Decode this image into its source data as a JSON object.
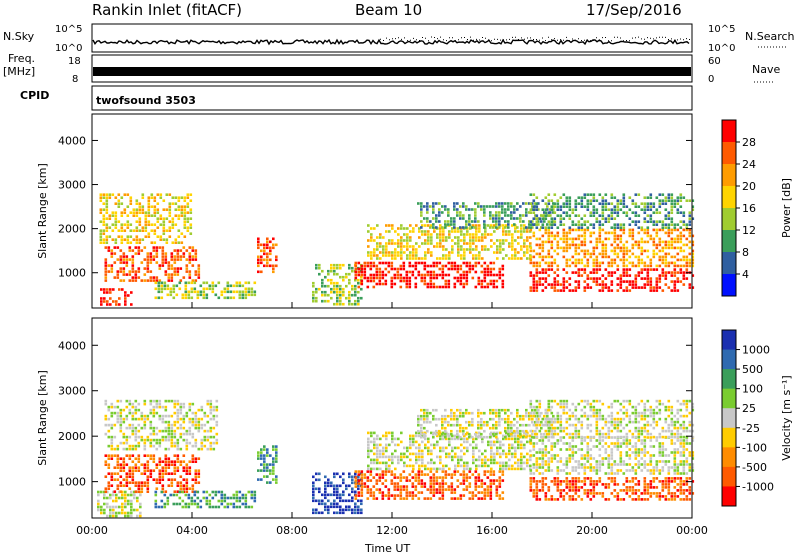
{
  "header": {
    "title": "Rankin Inlet (fitACF)",
    "beam": "Beam 10",
    "date": "17/Sep/2016"
  },
  "strips": {
    "nsky_label": "N.Sky",
    "nsky_ticks": [
      "10^5",
      "10^0"
    ],
    "nsearch_label": "N.Search",
    "nsearch_ticks": [
      "10^5",
      "10^0"
    ],
    "freq_label": "Freq.",
    "freq_unit": "[MHz]",
    "freq_ticks": [
      "18",
      "8"
    ],
    "nave_label": "Nave",
    "nave_ticks": [
      "60",
      "0"
    ],
    "cpid_label": "CPID",
    "cpid_value": "twofsound 3503"
  },
  "chart_data": [
    {
      "type": "heatmap",
      "name": "power",
      "ylabel": "Slant Range [km]",
      "xlabel": "Time UT",
      "xlim": [
        0,
        24
      ],
      "ylim": [
        200,
        4600
      ],
      "x_ticks": [
        "00:00",
        "04:00",
        "08:00",
        "12:00",
        "16:00",
        "20:00",
        "00:00"
      ],
      "y_ticks": [
        1000,
        2000,
        3000,
        4000
      ],
      "colorbar": {
        "label": "Power [dB]",
        "ticks": [
          "28",
          "24",
          "20",
          "16",
          "12",
          "8",
          "4"
        ],
        "colors": [
          "#ff0000",
          "#ff5a00",
          "#ff9c00",
          "#ffd400",
          "#a0cc30",
          "#3a9e5a",
          "#2f5fa0",
          "#0010ff"
        ]
      },
      "echo_regions": [
        {
          "x": [
            0.2,
            1.6
          ],
          "y": [
            250,
            650
          ],
          "level": 0
        },
        {
          "x": [
            0.5,
            4.3
          ],
          "y": [
            800,
            1600
          ],
          "level": 1
        },
        {
          "x": [
            0.3,
            4.0
          ],
          "y": [
            1700,
            2800
          ],
          "level": 3
        },
        {
          "x": [
            2.5,
            6.5
          ],
          "y": [
            450,
            800
          ],
          "level": 4
        },
        {
          "x": [
            6.6,
            7.4
          ],
          "y": [
            1000,
            1800
          ],
          "level": 1
        },
        {
          "x": [
            8.8,
            10.8
          ],
          "y": [
            300,
            1200
          ],
          "level": 4
        },
        {
          "x": [
            10.5,
            16.5
          ],
          "y": [
            650,
            1250
          ],
          "level": 0
        },
        {
          "x": [
            11.0,
            17.5
          ],
          "y": [
            1300,
            2100
          ],
          "level": 3
        },
        {
          "x": [
            13.0,
            18.5
          ],
          "y": [
            2000,
            2600
          ],
          "level": 5
        },
        {
          "x": [
            17.5,
            24.0
          ],
          "y": [
            600,
            1100
          ],
          "level": 0
        },
        {
          "x": [
            17.5,
            24.0
          ],
          "y": [
            1150,
            2000
          ],
          "level": 2
        },
        {
          "x": [
            17.5,
            24.0
          ],
          "y": [
            2000,
            2800
          ],
          "level": 5
        }
      ]
    },
    {
      "type": "heatmap",
      "name": "velocity",
      "ylabel": "Slant Range [km]",
      "xlabel": "Time UT",
      "xlim": [
        0,
        24
      ],
      "ylim": [
        200,
        4600
      ],
      "x_ticks": [
        "00:00",
        "04:00",
        "08:00",
        "12:00",
        "16:00",
        "20:00",
        "00:00"
      ],
      "y_ticks": [
        1000,
        2000,
        3000,
        4000
      ],
      "colorbar": {
        "label": "Velocity [m s⁻¹]",
        "ticks": [
          "1000",
          "500",
          "100",
          "25",
          "-25",
          "-100",
          "-500",
          "-1000"
        ],
        "colors": [
          "#1a2fb0",
          "#2f6ab0",
          "#3a9e5a",
          "#7acc30",
          "#c8c8c8",
          "#ffcc00",
          "#ff8c00",
          "#ff5a00",
          "#ff0000"
        ]
      },
      "echo_regions": [
        {
          "x": [
            0.2,
            2.0
          ],
          "y": [
            250,
            800
          ],
          "level": 4
        },
        {
          "x": [
            0.5,
            4.3
          ],
          "y": [
            800,
            1600
          ],
          "level": 7
        },
        {
          "x": [
            0.5,
            5.0
          ],
          "y": [
            1700,
            2800
          ],
          "level": 4
        },
        {
          "x": [
            2.5,
            6.5
          ],
          "y": [
            450,
            800
          ],
          "level": 2
        },
        {
          "x": [
            6.6,
            7.4
          ],
          "y": [
            1000,
            1800
          ],
          "level": 2
        },
        {
          "x": [
            8.8,
            10.8
          ],
          "y": [
            300,
            1200
          ],
          "level": 0
        },
        {
          "x": [
            10.5,
            16.5
          ],
          "y": [
            650,
            1250
          ],
          "level": 7
        },
        {
          "x": [
            11.0,
            17.5
          ],
          "y": [
            1300,
            2100
          ],
          "level": 4
        },
        {
          "x": [
            13.0,
            18.5
          ],
          "y": [
            2000,
            2600
          ],
          "level": 4
        },
        {
          "x": [
            17.5,
            24.0
          ],
          "y": [
            600,
            1100
          ],
          "level": 7
        },
        {
          "x": [
            17.5,
            24.0
          ],
          "y": [
            1150,
            2000
          ],
          "level": 4
        },
        {
          "x": [
            17.5,
            24.0
          ],
          "y": [
            2000,
            2800
          ],
          "level": 4
        }
      ]
    }
  ]
}
